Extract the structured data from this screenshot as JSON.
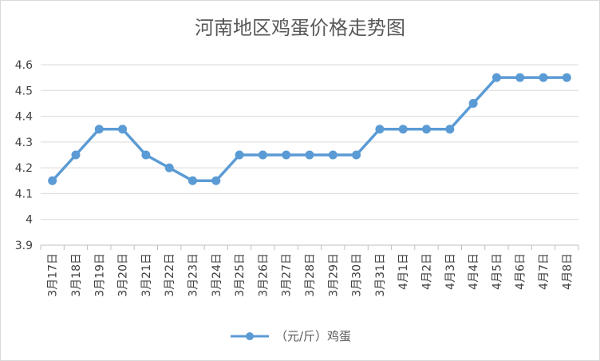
{
  "chart_data": {
    "type": "line",
    "title": "河南地区鸡蛋价格走势图",
    "xlabel": "",
    "ylabel": "",
    "categories": [
      "3月17日",
      "3月18日",
      "3月19日",
      "3月20日",
      "3月21日",
      "3月22日",
      "3月23日",
      "3月24日",
      "3月25日",
      "3月26日",
      "3月27日",
      "3月28日",
      "3月29日",
      "3月30日",
      "3月31日",
      "4月1日",
      "4月2日",
      "4月3日",
      "4月4日",
      "4月5日",
      "4月6日",
      "4月7日",
      "4月8日"
    ],
    "series": [
      {
        "name": "（元/斤）鸡蛋",
        "color": "#5b9bd5",
        "values": [
          4.15,
          4.25,
          4.35,
          4.35,
          4.25,
          4.2,
          4.15,
          4.15,
          4.25,
          4.25,
          4.25,
          4.25,
          4.25,
          4.25,
          4.35,
          4.35,
          4.35,
          4.35,
          4.45,
          4.55,
          4.55,
          4.55,
          4.55
        ]
      }
    ],
    "ylim": [
      3.9,
      4.6
    ],
    "yticks": [
      3.9,
      4,
      4.1,
      4.2,
      4.3,
      4.4,
      4.5,
      4.6
    ],
    "ytick_labels": [
      "3.9",
      "4",
      "4.1",
      "4.2",
      "4.3",
      "4.4",
      "4.5",
      "4.6"
    ],
    "grid": true,
    "legend_position": "bottom"
  }
}
